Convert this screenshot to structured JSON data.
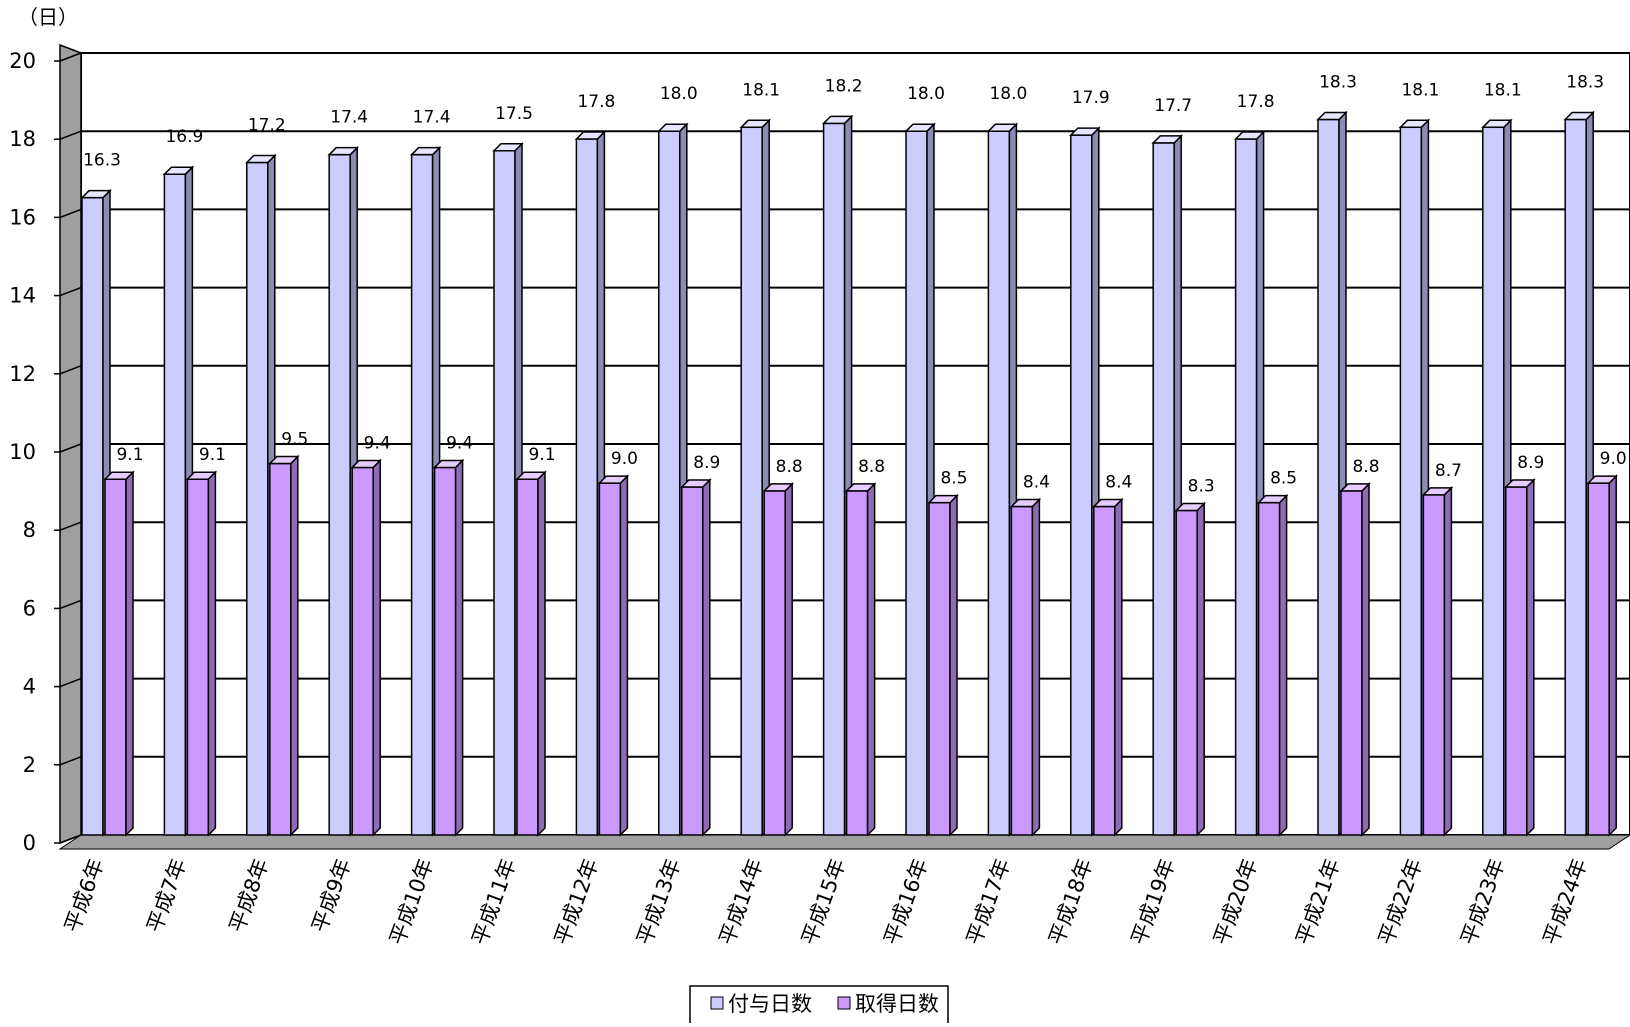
{
  "colors": {
    "series_a_front": "#ccccff",
    "series_a_side": "#8c8cb3",
    "series_a_top": "#e6e6ff",
    "series_b_front": "#cc99ff",
    "series_b_side": "#8f6bb3",
    "series_b_top": "#e6ccff",
    "wall": "#ffffff",
    "side_wall": "#a0a0a0",
    "floor": "#a0a0a0",
    "grid": "#000000"
  },
  "chart_data": {
    "type": "bar",
    "style": "3d-clustered-column",
    "ylabel": "（日）",
    "ylim": [
      0,
      20
    ],
    "yticks": [
      "0",
      "2",
      "4",
      "6",
      "8",
      "10",
      "12",
      "14",
      "16",
      "18",
      "20"
    ],
    "categories": [
      "平成6年",
      "平成7年",
      "平成8年",
      "平成9年",
      "平成10年",
      "平成11年",
      "平成12年",
      "平成13年",
      "平成14年",
      "平成15年",
      "平成16年",
      "平成17年",
      "平成18年",
      "平成19年",
      "平成20年",
      "平成21年",
      "平成22年",
      "平成23年",
      "平成24年"
    ],
    "series": [
      {
        "name": "付与日数",
        "values": [
          16.3,
          16.9,
          17.2,
          17.4,
          17.4,
          17.5,
          17.8,
          18.0,
          18.1,
          18.2,
          18.0,
          18.0,
          17.9,
          17.7,
          17.8,
          18.3,
          18.1,
          18.1,
          18.3
        ],
        "labels": [
          "16.3",
          "16.9",
          "17.2",
          "17.4",
          "17.4",
          "17.5",
          "17.8",
          "18.0",
          "18.1",
          "18.2",
          "18.0",
          "18.0",
          "17.9",
          "17.7",
          "17.8",
          "18.3",
          "18.1",
          "18.1",
          "18.3"
        ]
      },
      {
        "name": "取得日数",
        "values": [
          9.1,
          9.1,
          9.5,
          9.4,
          9.4,
          9.1,
          9.0,
          8.9,
          8.8,
          8.8,
          8.5,
          8.4,
          8.4,
          8.3,
          8.5,
          8.8,
          8.7,
          8.9,
          9.0
        ],
        "labels": [
          "9.1",
          "9.1",
          "9.5",
          "9.4",
          "9.4",
          "9.1",
          "9.0",
          "8.9",
          "8.8",
          "8.8",
          "8.5",
          "8.4",
          "8.4",
          "8.3",
          "8.5",
          "8.8",
          "8.7",
          "8.9",
          "9.0"
        ]
      }
    ],
    "grid": true,
    "legend": "bottom"
  }
}
